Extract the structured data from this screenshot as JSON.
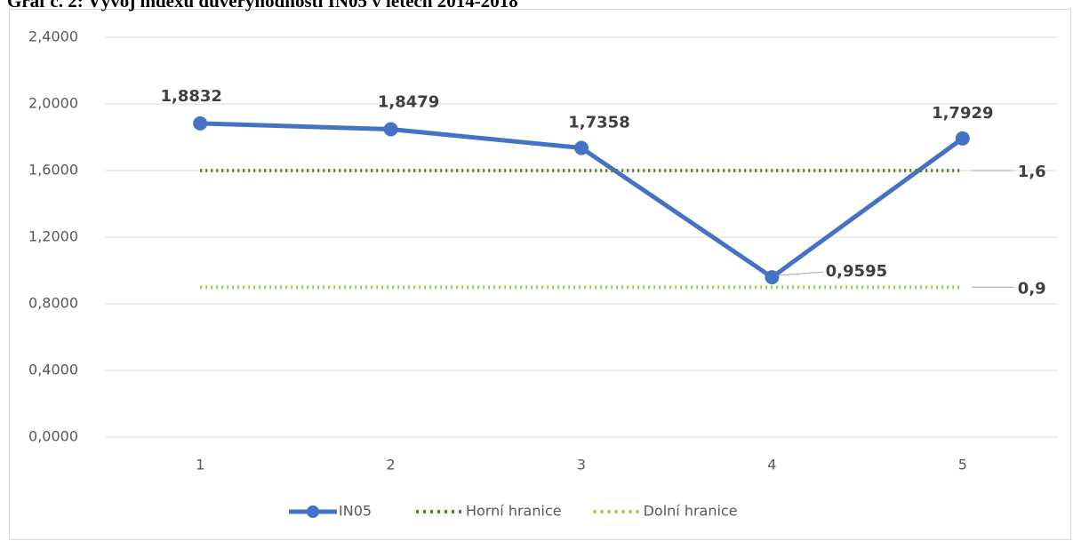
{
  "chart_data": {
    "type": "line",
    "title": "Graf č. 2: Vývoj indexu důvěryhodnosti IN05 v letech 2014-2018",
    "categories": [
      "1",
      "2",
      "3",
      "4",
      "5"
    ],
    "series": [
      {
        "name": "IN05",
        "color": "#4472c4",
        "style": "solid",
        "values": [
          1.8832,
          1.8479,
          1.7358,
          0.9595,
          1.7929
        ],
        "value_labels": [
          "1,8832",
          "1,8479",
          "1,7358",
          "0,9595",
          "1,7929"
        ]
      },
      {
        "name": "Horní hranice",
        "color": "#548235",
        "style": "dotted",
        "values": [
          1.6,
          1.6,
          1.6,
          1.6,
          1.6
        ],
        "value_labels": [
          null,
          null,
          null,
          null,
          "1,6"
        ]
      },
      {
        "name": "Dolní hranice",
        "color": "#92d050",
        "style": "dotted",
        "values": [
          0.9,
          0.9,
          0.9,
          0.9,
          0.9
        ],
        "value_labels": [
          null,
          null,
          null,
          null,
          "0,9"
        ]
      }
    ],
    "ylim": [
      0,
      2.4
    ],
    "yticks": [
      {
        "value": 0,
        "label": "0,0000"
      },
      {
        "value": 0.4,
        "label": "0,4000"
      },
      {
        "value": 0.8,
        "label": "0,8000"
      },
      {
        "value": 1.2,
        "label": "1,2000"
      },
      {
        "value": 1.6,
        "label": "1,6000"
      },
      {
        "value": 2.0,
        "label": "2,0000"
      },
      {
        "value": 2.4,
        "label": "2,4000"
      }
    ],
    "grid": true,
    "legend": "bottom"
  }
}
